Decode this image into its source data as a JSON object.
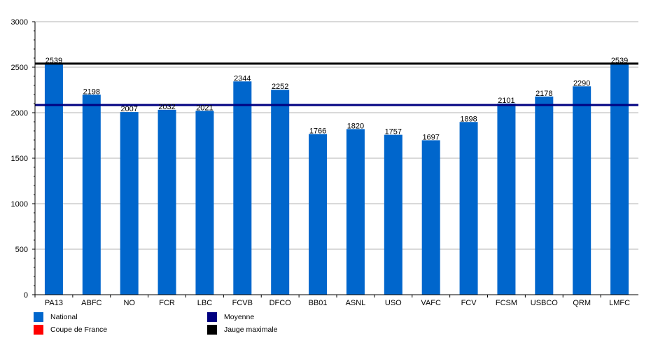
{
  "chart_data": {
    "type": "bar",
    "title": "",
    "xlabel": "",
    "ylabel": "",
    "ylim": [
      0,
      3000
    ],
    "yticks": [
      0,
      500,
      1000,
      1500,
      2000,
      2500,
      3000
    ],
    "grid": true,
    "legend_position": "bottom-left",
    "categories": [
      "PA13",
      "ABFC",
      "NO",
      "FCR",
      "LBC",
      "FCVB",
      "DFCO",
      "BB01",
      "ASNL",
      "USO",
      "VAFC",
      "FCV",
      "FCSM",
      "USBCO",
      "QRM",
      "LMFC"
    ],
    "series": [
      {
        "name": "National",
        "color": "#0066cc",
        "values": [
          2539,
          2198,
          2007,
          2032,
          2021,
          2344,
          2252,
          1766,
          1820,
          1757,
          1697,
          1898,
          2101,
          2178,
          2290,
          2539
        ]
      }
    ],
    "reference_lines": [
      {
        "name": "Moyenne",
        "color": "#000080",
        "value": 2085
      },
      {
        "name": "Jauge maximale",
        "color": "#000000",
        "value": 2539
      }
    ],
    "legend": [
      {
        "name": "National",
        "color": "#0066cc"
      },
      {
        "name": "Coupe de France",
        "color": "#ff0000"
      },
      {
        "name": "Moyenne",
        "color": "#000080"
      },
      {
        "name": "Jauge maximale",
        "color": "#000000"
      }
    ]
  }
}
